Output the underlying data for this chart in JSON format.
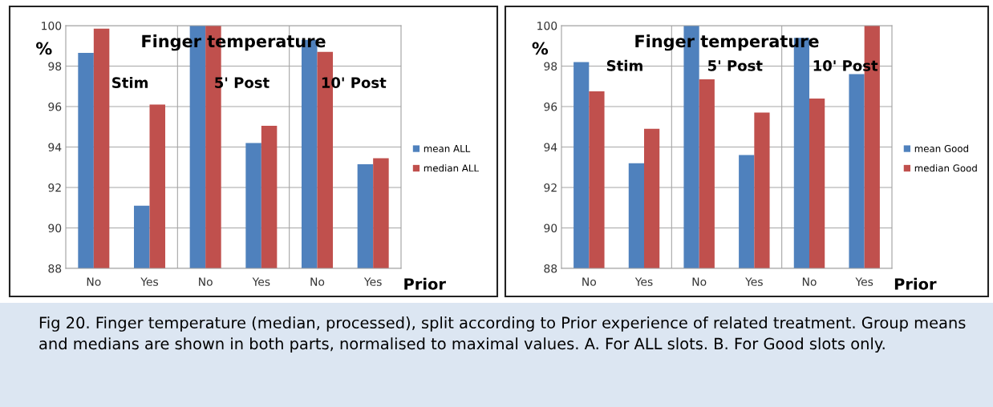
{
  "chart_data": [
    {
      "type": "bar",
      "title": "Finger temperature",
      "ylabel": "%",
      "xlabel": "Prior",
      "categories": [
        "No",
        "Yes",
        "No",
        "Yes",
        "No",
        "Yes"
      ],
      "series": [
        {
          "name": "mean ALL",
          "color": "#4f81bd",
          "values": [
            98.65,
            91.1,
            100,
            94.2,
            99.3,
            93.15
          ]
        },
        {
          "name": "median ALL",
          "color": "#c0504d",
          "values": [
            99.85,
            96.1,
            100,
            95.05,
            98.7,
            93.45
          ]
        }
      ],
      "ylim": [
        88,
        100
      ],
      "yticks": [
        88,
        90,
        92,
        94,
        96,
        98,
        100
      ],
      "grid": true,
      "legend": "right",
      "annotations": [
        "Stim",
        "5' Post",
        "10' Post",
        "Fig 20. Finger temperature (median, processed), split according to Prior experience of related treatment. Group means and medians are shown in both parts, normalised to maximal values. A. For ALL slots. B. For Good slots only."
      ]
    },
    {
      "type": "bar",
      "title": "Finger temperature",
      "ylabel": "%",
      "xlabel": "Prior",
      "categories": [
        "No",
        "Yes",
        "No",
        "Yes",
        "No",
        "Yes"
      ],
      "series": [
        {
          "name": "mean Good",
          "color": "#4f81bd",
          "values": [
            98.2,
            93.2,
            100,
            93.6,
            99.4,
            97.6
          ]
        },
        {
          "name": "median Good",
          "color": "#c0504d",
          "values": [
            96.75,
            94.9,
            97.35,
            95.7,
            96.4,
            100
          ]
        }
      ],
      "ylim": [
        88,
        100
      ],
      "yticks": [
        88,
        90,
        92,
        94,
        96,
        98,
        100
      ],
      "grid": true,
      "legend": "right",
      "annotations": [
        "Stim",
        "5' Post",
        "10' Post"
      ]
    }
  ]
}
